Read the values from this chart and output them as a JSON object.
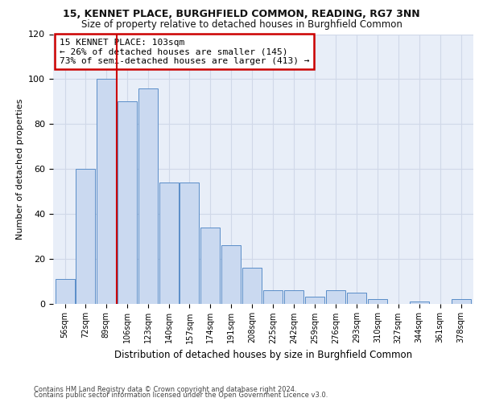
{
  "title1": "15, KENNET PLACE, BURGHFIELD COMMON, READING, RG7 3NN",
  "title2": "Size of property relative to detached houses in Burghfield Common",
  "xlabel": "Distribution of detached houses by size in Burghfield Common",
  "ylabel": "Number of detached properties",
  "footnote1": "Contains HM Land Registry data © Crown copyright and database right 2024.",
  "footnote2": "Contains public sector information licensed under the Open Government Licence v3.0.",
  "annotation_line1": "15 KENNET PLACE: 103sqm",
  "annotation_line2": "← 26% of detached houses are smaller (145)",
  "annotation_line3": "73% of semi-detached houses are larger (413) →",
  "bar_color": "#cad9f0",
  "bar_edge_color": "#5a8dc8",
  "vline_color": "#cc0000",
  "vline_x_bin_index": 2,
  "annotation_box_edge": "#cc0000",
  "bin_edges": [
    56,
    72,
    89,
    106,
    123,
    140,
    157,
    174,
    191,
    208,
    225,
    242,
    259,
    276,
    293,
    310,
    327,
    344,
    361,
    378,
    395
  ],
  "values": [
    11,
    60,
    100,
    90,
    96,
    54,
    54,
    34,
    26,
    16,
    6,
    6,
    3,
    6,
    5,
    2,
    0,
    1,
    0,
    2
  ],
  "ylim": [
    0,
    120
  ],
  "yticks": [
    0,
    20,
    40,
    60,
    80,
    100,
    120
  ],
  "grid_color": "#d0d8e8",
  "bg_color": "#e8eef8",
  "title1_fontsize": 9,
  "title2_fontsize": 8.5,
  "ylabel_fontsize": 8,
  "xlabel_fontsize": 8.5,
  "xtick_fontsize": 7,
  "ytick_fontsize": 8,
  "footnote_fontsize": 6,
  "annot_fontsize": 8
}
